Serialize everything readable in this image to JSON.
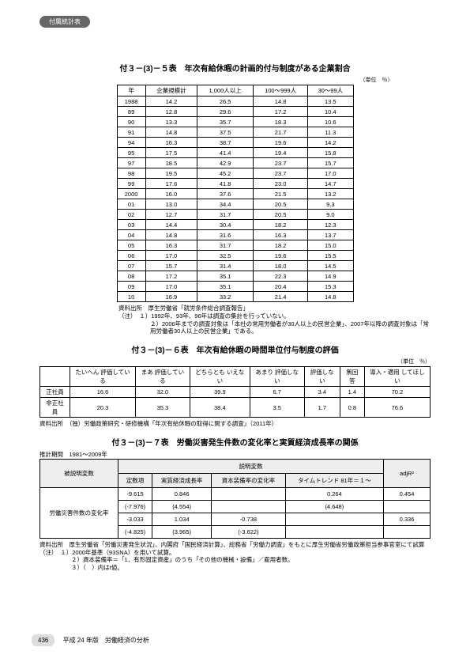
{
  "badge": "付属統計表",
  "t1": {
    "title": "付３－(3)－５表　年次有給休暇の計画的付与制度がある企業割合",
    "unit": "（単位　％）",
    "headers": [
      "年",
      "企業規模計",
      "1,000人以上",
      "100～999人",
      "30～99人"
    ],
    "rows": [
      [
        "1988",
        "14.2",
        "26.5",
        "14.8",
        "13.5"
      ],
      [
        "89",
        "12.8",
        "29.6",
        "17.2",
        "10.4"
      ],
      [
        "90",
        "13.3",
        "35.7",
        "18.3",
        "10.6"
      ],
      [
        "91",
        "14.8",
        "37.5",
        "21.7",
        "11.3"
      ],
      [
        "94",
        "16.3",
        "38.7",
        "19.6",
        "14.2"
      ],
      [
        "95",
        "17.5",
        "41.4",
        "19.4",
        "15.8"
      ],
      [
        "97",
        "18.5",
        "42.9",
        "23.7",
        "15.7"
      ],
      [
        "98",
        "19.5",
        "45.2",
        "23.7",
        "17.0"
      ],
      [
        "99",
        "17.6",
        "41.8",
        "23.0",
        "14.7"
      ],
      [
        "2000",
        "16.0",
        "37.6",
        "21.5",
        "13.2"
      ],
      [
        "01",
        "13.0",
        "34.4",
        "20.5",
        "9.3"
      ],
      [
        "02",
        "12.7",
        "31.7",
        "20.5",
        "9.0"
      ],
      [
        "03",
        "14.4",
        "30.4",
        "18.2",
        "12.3"
      ],
      [
        "04",
        "14.8",
        "31.6",
        "16.3",
        "13.7"
      ],
      [
        "05",
        "16.3",
        "31.7",
        "18.2",
        "15.0"
      ],
      [
        "06",
        "17.0",
        "32.5",
        "19.6",
        "15.5"
      ],
      [
        "07",
        "15.7",
        "31.4",
        "18.0",
        "14.5"
      ],
      [
        "08",
        "17.2",
        "35.1",
        "22.3",
        "14.9"
      ],
      [
        "09",
        "17.0",
        "35.1",
        "20.4",
        "15.3"
      ],
      [
        "10",
        "16.9",
        "33.2",
        "21.4",
        "14.8"
      ]
    ],
    "note1": "資料出所　厚生労働省「就労条件総合調査報告」",
    "note2": "（注）　１）1992年、93年、96年は調査の集計を行っていない。",
    "note3": "２）2006年までの調査対象は「本社の常用労働者が30人以上の民営企業」、2007年以降の調査対象は「常用労働者30人以上の民営企業」である。"
  },
  "t2": {
    "title": "付３－(3)－６表　年次有給休暇の時間単位付与制度の評価",
    "unit": "（単位　％）",
    "headers": [
      "",
      "たいへん\n評価している",
      "まあ\n評価している",
      "どちらとも\nいえない",
      "あまり\n評価しない",
      "評価しない",
      "無回答",
      "導入・適用\nしてほしい"
    ],
    "rows": [
      [
        "正社員",
        "16.6",
        "32.0",
        "39.9",
        "6.7",
        "3.4",
        "1.4",
        "70.2"
      ],
      [
        "非正社員",
        "20.3",
        "35.3",
        "38.4",
        "3.5",
        "1.7",
        "0.8",
        "76.6"
      ]
    ],
    "note": "資料出所　（独）労働政策研究・研修機構「年次有給休暇の取得に関する調査」（2011年）"
  },
  "t3": {
    "title": "付３－(3)－７表　労働災害発生件数の変化率と実質経済成長率の関係",
    "subtitle": "推計期間　1981～2009年",
    "h_main": "被説明変数",
    "h_group": "説明変数",
    "h_cols": [
      "定数項",
      "実質経済成長率",
      "資本装備率の変化率",
      "タイムトレンド\n81年＝１～",
      "adjR²"
    ],
    "row_label": "労働災害件数の変化率",
    "cells": [
      [
        "-9.615",
        "0.846",
        "",
        "0.264",
        "0.454"
      ],
      [
        "(-7.976)",
        "(4.554)",
        "",
        "(4.648)",
        ""
      ],
      [
        "-3.033",
        "1.034",
        "-0.738",
        "",
        "0.336"
      ],
      [
        "(-4.825)",
        "(3.965)",
        "(-3.622)",
        "",
        ""
      ]
    ],
    "note1": "資料出所　厚生労働省「労働災害発生状況」、内閣府「国民経済計算」、総務省「労働力調査」をもとに厚生労働省労働政策担当参事官室にて試算",
    "note2": "（注）　１）2000年基準（93SNA）を用いて試算。",
    "note3": "２）資本装備率＝「1．有形固定資産」のうち「その他の機械・設備」／雇用者数。",
    "note4": "３）（　）内はt値。"
  },
  "footer": {
    "page": "436",
    "text": "平成 24 年版　労働経済の分析"
  }
}
